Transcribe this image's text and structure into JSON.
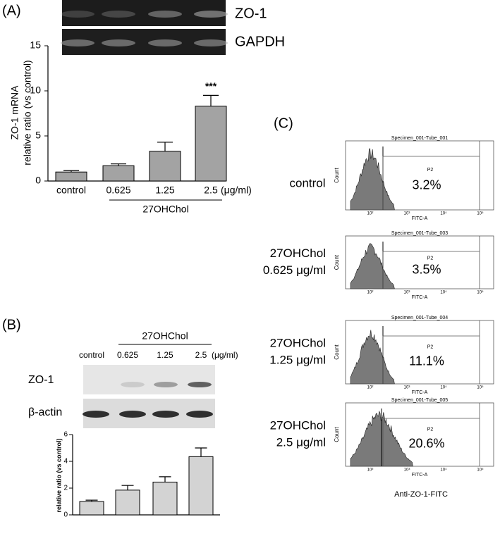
{
  "panel_labels": [
    "(A)",
    "(B)",
    "(C)"
  ],
  "blot_a": {
    "bands": [
      "ZO-1",
      "GAPDH"
    ]
  },
  "blot_b": {
    "bands": [
      "ZO-1",
      "β-actin"
    ]
  },
  "chart_data": [
    {
      "type": "bar",
      "ylabel": [
        "ZO-1 mRNA",
        "relative ratio (vs control)"
      ],
      "categories": [
        "control",
        "0.625",
        "1.25",
        "2.5"
      ],
      "unit_label": "(μg/ml)",
      "group_label": "27OHChol",
      "values": [
        1.0,
        1.7,
        3.3,
        8.3
      ],
      "errors": [
        0.15,
        0.2,
        1.0,
        1.2
      ],
      "annotation": "***",
      "color": "#a3a3a3",
      "ylim": [
        0,
        15
      ],
      "yticks": [
        0,
        5,
        10,
        15
      ]
    },
    {
      "type": "bar",
      "ylabel": [
        "relative ratio (vs control)"
      ],
      "categories": [
        "control",
        "0.625",
        "1.25",
        "2.5"
      ],
      "unit_label": "(μg/ml)",
      "group_label": "27OHChol",
      "values": [
        1.0,
        1.85,
        2.45,
        4.35
      ],
      "errors": [
        0.1,
        0.35,
        0.4,
        0.65
      ],
      "color": "#d3d3d3",
      "ylim": [
        0,
        6
      ],
      "yticks": [
        0,
        2,
        4,
        6
      ]
    }
  ],
  "flow": {
    "count_label": "Count",
    "axis_label": "FITC-A",
    "gate": "P2",
    "x_ticks": [
      "10²",
      "10³",
      "10⁴",
      "10⁵"
    ],
    "x_title": "Anti-ZO-1-FITC",
    "plots": [
      {
        "title": "Specimen_001-Tube_001",
        "percent": "3.2%",
        "label": [
          "control"
        ]
      },
      {
        "title": "Specimen_001-Tube_003",
        "percent": "3.5%",
        "label": [
          "27OHChol",
          "0.625 μg/ml"
        ]
      },
      {
        "title": "Specimen_001-Tube_004",
        "percent": "11.1%",
        "label": [
          "27OHChol",
          "1.25 μg/ml"
        ]
      },
      {
        "title": "Specimen_001-Tube_005",
        "percent": "20.6%",
        "label": [
          "27OHChol",
          "2.5 μg/ml"
        ]
      }
    ]
  }
}
